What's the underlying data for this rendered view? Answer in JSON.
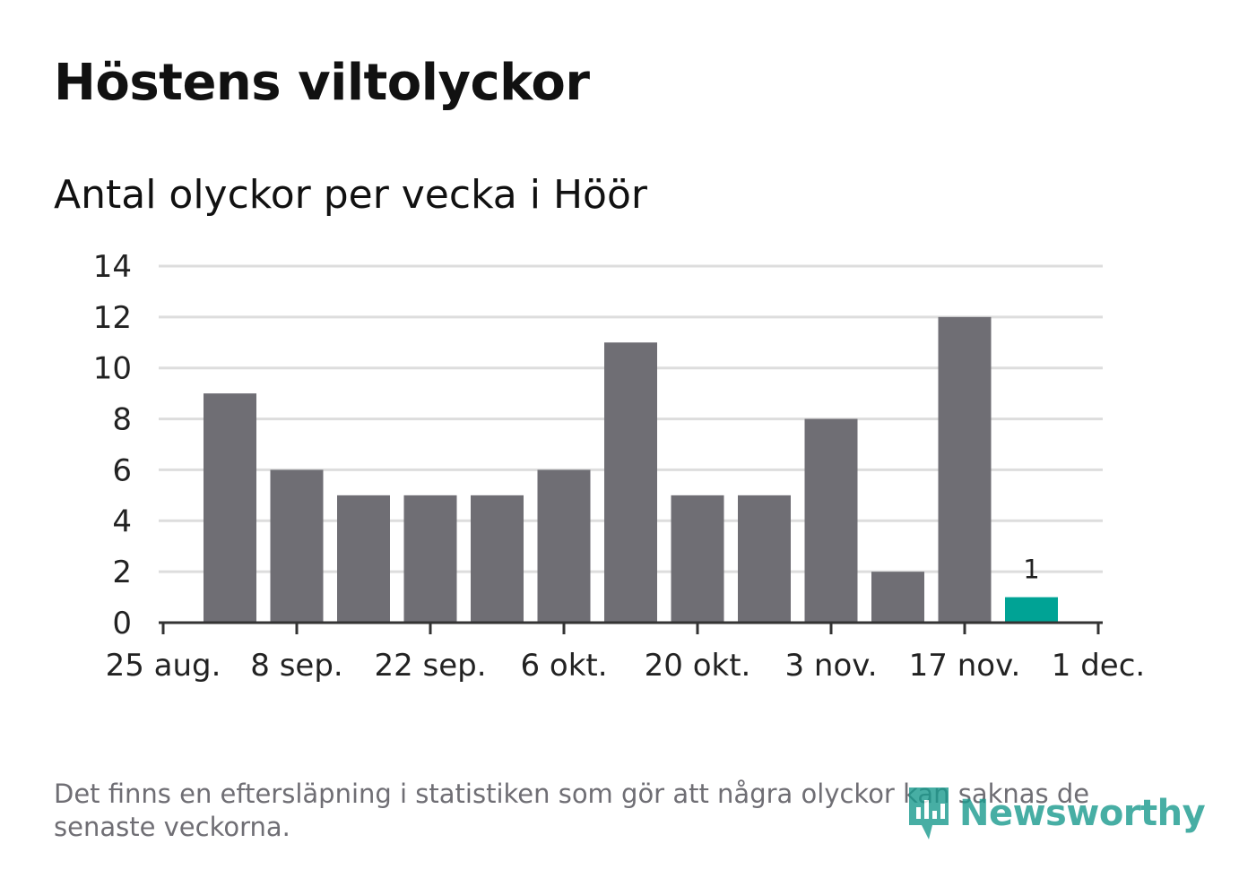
{
  "header": {
    "title": "Höstens viltolyckor",
    "subtitle": "Antal olyckor per vecka i Höör"
  },
  "footer": {
    "note": "Det finns en eftersläpning i statistiken som gör att några olyckor kan saknas de senaste veckorna.",
    "brand": "Newsworthy"
  },
  "colors": {
    "bar": "#6f6e74",
    "highlight": "#00a395",
    "grid": "#dddddd",
    "axis": "#333333"
  },
  "chart_data": {
    "type": "bar",
    "title": "Antal olyckor per vecka i Höör",
    "x_tick_labels": [
      "25 aug.",
      "8 sep.",
      "22 sep.",
      "6 okt.",
      "20 okt.",
      "3 nov.",
      "17 nov.",
      "1 dec."
    ],
    "y_tick_labels": [
      "0",
      "2",
      "4",
      "6",
      "8",
      "10",
      "12",
      "14"
    ],
    "ylim": [
      0,
      14
    ],
    "grid": true,
    "series": [
      {
        "values": [
          9,
          6,
          5,
          5,
          5,
          6,
          11,
          5,
          5,
          8,
          2,
          12,
          1
        ]
      }
    ],
    "highlight_index": 12,
    "data_labels": [
      {
        "index": 12,
        "text": "1"
      }
    ]
  }
}
